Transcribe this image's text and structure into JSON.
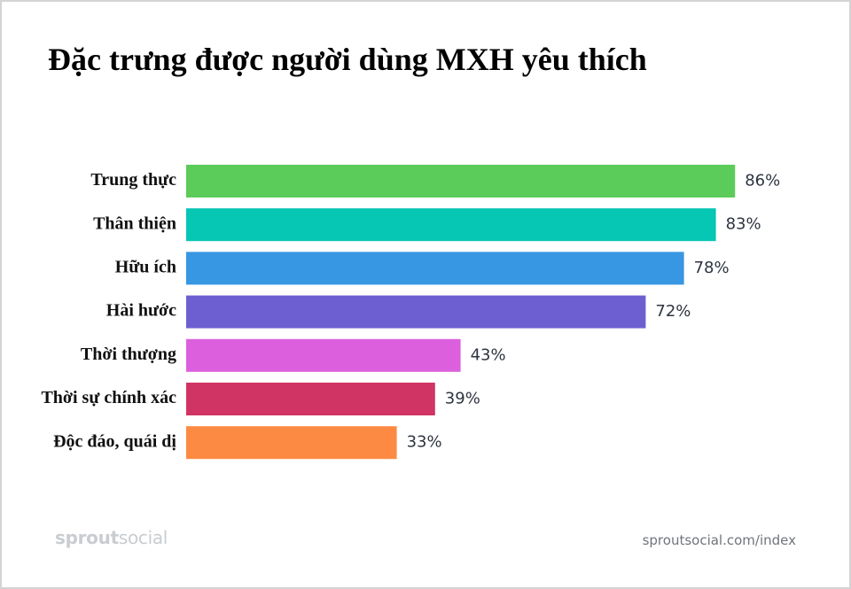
{
  "title": "Đặc trưng được người dùng MXH yêu thích",
  "chart_data": {
    "type": "bar",
    "orientation": "horizontal",
    "title": "Đặc trưng được người dùng MXH yêu thích",
    "xlabel": "",
    "ylabel": "",
    "grid": false,
    "xlim": [
      0,
      100
    ],
    "categories": [
      "Trung thực",
      "Thân thiện",
      "Hữu ích",
      "Hài hước",
      "Thời thượng",
      "Thời sự chính xác",
      "Độc đáo, quái dị"
    ],
    "values": [
      86,
      83,
      78,
      72,
      43,
      39,
      33
    ],
    "value_labels": [
      "86%",
      "83%",
      "78%",
      "72%",
      "43%",
      "39%",
      "33%"
    ],
    "colors": [
      "#5bcc5a",
      "#06c6b4",
      "#3797e2",
      "#6d5fd2",
      "#dc60de",
      "#d03464",
      "#fd8a43"
    ]
  },
  "footer": {
    "logo_part1": "sprout",
    "logo_part2": "social",
    "source": "sproutsocial.com/index"
  }
}
